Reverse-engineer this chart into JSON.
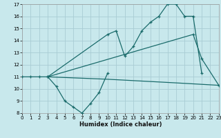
{
  "xlabel": "Humidex (Indice chaleur)",
  "bg_color": "#c8e8ec",
  "grid_color": "#a8ccd4",
  "line_color": "#1a6b6b",
  "xlim": [
    0,
    23
  ],
  "ylim": [
    8,
    17
  ],
  "xticks": [
    0,
    1,
    2,
    3,
    4,
    5,
    6,
    7,
    8,
    9,
    10,
    11,
    12,
    13,
    14,
    15,
    16,
    17,
    18,
    19,
    20,
    21,
    22,
    23
  ],
  "yticks": [
    8,
    9,
    10,
    11,
    12,
    13,
    14,
    15,
    16,
    17
  ],
  "series": [
    {
      "x": [
        0,
        1,
        2,
        3,
        4,
        5,
        6,
        7,
        8,
        9,
        10
      ],
      "y": [
        11,
        11,
        11,
        11,
        10.2,
        9.0,
        8.5,
        8.0,
        8.8,
        9.7,
        11.3
      ],
      "marker": true
    },
    {
      "x": [
        3,
        10,
        11,
        12,
        13,
        14,
        15,
        16,
        17,
        18,
        19,
        20,
        21
      ],
      "y": [
        11,
        14.5,
        14.8,
        12.7,
        13.5,
        14.8,
        15.5,
        16.0,
        17.0,
        17.0,
        16.0,
        16.0,
        11.3
      ],
      "marker": true
    },
    {
      "x": [
        3,
        20,
        21,
        23
      ],
      "y": [
        11,
        14.5,
        12.5,
        10.3
      ],
      "marker": true
    },
    {
      "x": [
        3,
        10,
        18,
        23
      ],
      "y": [
        11,
        10.8,
        10.5,
        10.3
      ],
      "marker": false
    }
  ]
}
